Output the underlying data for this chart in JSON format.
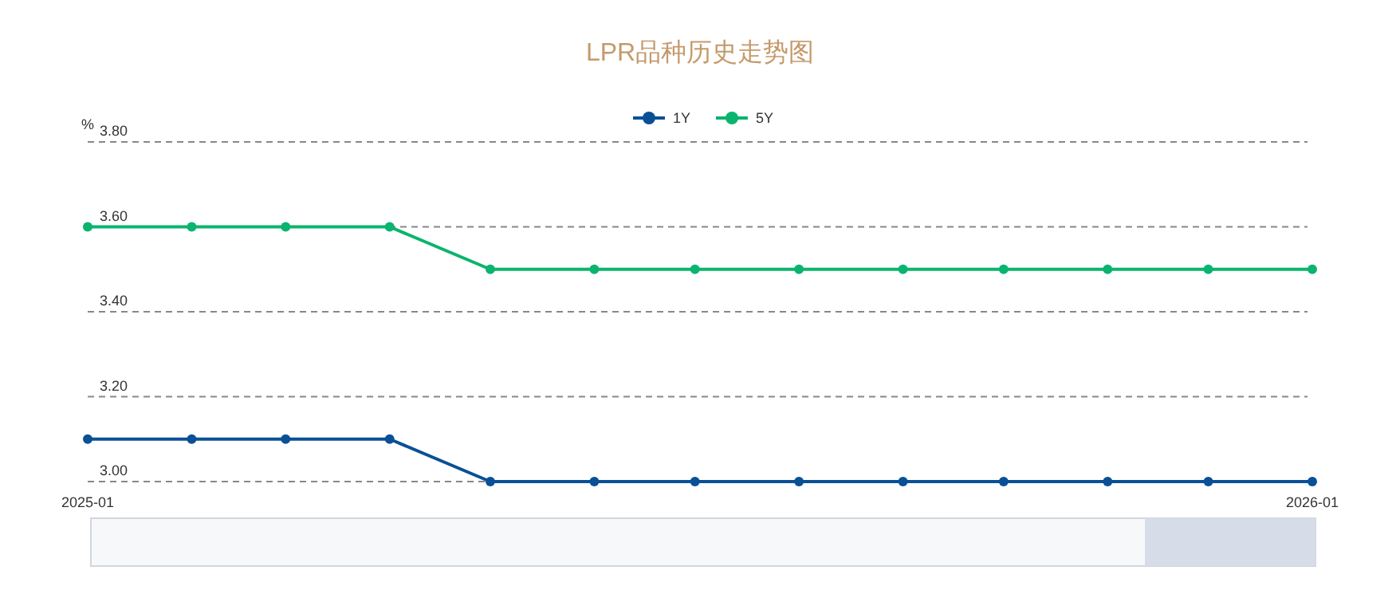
{
  "chart_data": {
    "type": "line",
    "title": "LPR品种历史走势图",
    "ylabel": "%",
    "x": [
      "2025-01",
      "2025-02",
      "2025-03",
      "2025-04",
      "2025-05",
      "2025-06",
      "2025-07",
      "2025-08",
      "2025-09",
      "2025-10",
      "2025-11",
      "2025-12",
      "2026-01"
    ],
    "series": [
      {
        "name": "1Y",
        "color": "#0a5096",
        "values": [
          3.1,
          3.1,
          3.1,
          3.1,
          3.0,
          3.0,
          3.0,
          3.0,
          3.0,
          3.0,
          3.0,
          3.0,
          3.0
        ]
      },
      {
        "name": "5Y",
        "color": "#0bb46e",
        "values": [
          3.6,
          3.6,
          3.6,
          3.6,
          3.5,
          3.5,
          3.5,
          3.5,
          3.5,
          3.5,
          3.5,
          3.5,
          3.5
        ]
      }
    ],
    "xlim": [
      "2025-01",
      "2026-01"
    ],
    "xticks": [
      "2025-01",
      "2026-01"
    ],
    "ylim": [
      3.0,
      3.8
    ],
    "yticks": [
      {
        "value": 3.0,
        "label": "3.00"
      },
      {
        "value": 3.2,
        "label": "3.20"
      },
      {
        "value": 3.4,
        "label": "3.40"
      },
      {
        "value": 3.6,
        "label": "3.60"
      },
      {
        "value": 3.8,
        "label": "3.80"
      }
    ],
    "grid": "y",
    "legend": "top",
    "marker": "circle",
    "line_style": "solid"
  }
}
